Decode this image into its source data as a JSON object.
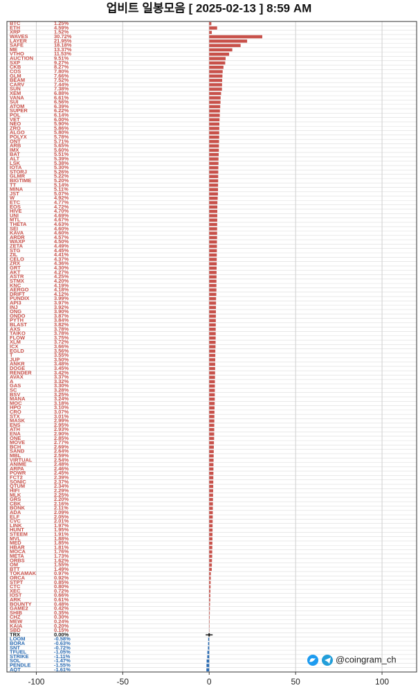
{
  "chart_data": {
    "type": "hbar",
    "title": "업비트 일봉모음 [ 2025-02-13 ]  8:59 AM",
    "footer": "@coingram_ch",
    "xlim": [
      -117,
      120
    ],
    "xticks": [
      -100,
      -50,
      0,
      50,
      100
    ],
    "grid": true,
    "colors": {
      "positive": "#c8514a",
      "zero": "#111111",
      "negative": "#2b6cb3"
    },
    "categories": [
      "BTC",
      "ETH",
      "XRP",
      "WAVES",
      "LAYER",
      "SAFE",
      "ME",
      "VTHO",
      "AUCTION",
      "SXP",
      "CKB",
      "COS",
      "GLM",
      "BEAM",
      "CARV",
      "SUN",
      "XEM",
      "VANA",
      "SUI",
      "ATOM",
      "SUPER",
      "POL",
      "VET",
      "NEO",
      "ZRO",
      "ALGO",
      "POLYX",
      "ONT",
      "ARB",
      "IMX",
      "BAT",
      "ALT",
      "LSK",
      "IOTA",
      "STORJ",
      "GLMR",
      "BIGTIME",
      "TT",
      "MINA",
      "JST",
      "W",
      "ETC",
      "EOS",
      "HIVE",
      "UNI",
      "MTL",
      "THETA",
      "SEI",
      "KAVA",
      "ARDR",
      "WAXP",
      "ZETA",
      "STG",
      "ZIL",
      "CELO",
      "ZRX",
      "GRT",
      "AKT",
      "ASTR",
      "STMX",
      "KNC",
      "AERGO",
      "DRIFT",
      "PUNDIX",
      "API3",
      "INJ",
      "ONG",
      "ONDO",
      "PYTH",
      "BLAST",
      "AXS",
      "TAIKO",
      "FLOW",
      "XLM",
      "ICX",
      "EGLD",
      "T",
      "JUP",
      "ANKR",
      "DOGE",
      "RENDER",
      "AVAX",
      "A",
      "GAS",
      "SC",
      "BSV",
      "MANA",
      "MOC",
      "HPO",
      "CRO",
      "STX",
      "MASK",
      "ENS",
      "ATH",
      "ENA",
      "ONE",
      "MOVE",
      "BCH",
      "SAND",
      "MBL",
      "VIRTUAL",
      "ANIME",
      "ARPA",
      "POWR",
      "FCT2",
      "SONIC",
      "QTUM",
      "HIFI",
      "MLK",
      "GRS",
      "CBK",
      "BONK",
      "ADA",
      "ELF",
      "CVC",
      "LINK",
      "HUNT",
      "STEEM",
      "MVL",
      "MED",
      "HBAR",
      "MOCA",
      "META",
      "ORBS",
      "OM",
      "BTT",
      "TOKAMAK",
      "ORCA",
      "STPT",
      "CTC",
      "XEC",
      "IOST",
      "ARK",
      "BOUNTY",
      "GAME2",
      "SHIB",
      "CHZ",
      "MEW",
      "KAIA",
      "SBD",
      "TRX",
      "LOOM",
      "BORA",
      "SNT",
      "TFUEL",
      "STRIKE",
      "SOL",
      "PENDLE",
      "AQT"
    ],
    "values": [
      1.25,
      4.59,
      1.52,
      30.72,
      21.95,
      18.18,
      13.37,
      11.53,
      9.51,
      9.27,
      8.27,
      7.8,
      7.66,
      7.52,
      7.44,
      7.38,
      6.88,
      6.61,
      6.56,
      6.39,
      6.22,
      6.14,
      6,
      5.9,
      5.86,
      5.8,
      5.78,
      5.71,
      5.65,
      5.6,
      5.51,
      5.39,
      5.38,
      5.3,
      5.26,
      5.22,
      5.2,
      5.14,
      5.11,
      5.07,
      4.92,
      4.77,
      4.72,
      4.7,
      4.69,
      4.67,
      4.63,
      4.6,
      4.6,
      4.57,
      4.5,
      4.49,
      4.45,
      4.41,
      4.37,
      4.36,
      4.3,
      4.27,
      4.25,
      4.2,
      4.19,
      4.18,
      4.12,
      3.99,
      3.97,
      3.92,
      3.9,
      3.87,
      3.84,
      3.82,
      3.78,
      3.78,
      3.75,
      3.72,
      3.66,
      3.56,
      3.55,
      3.5,
      3.48,
      3.45,
      3.42,
      3.37,
      3.32,
      3.3,
      3.28,
      3.25,
      3.24,
      3.18,
      3.1,
      3.07,
      3.01,
      2.99,
      2.95,
      2.93,
      2.9,
      2.85,
      2.77,
      2.69,
      2.64,
      2.59,
      2.54,
      2.48,
      2.46,
      2.45,
      2.39,
      2.37,
      2.34,
      2.29,
      2.25,
      2.2,
      2.16,
      2.11,
      2.09,
      2.05,
      2.01,
      1.97,
      1.95,
      1.91,
      1.88,
      1.85,
      1.81,
      1.76,
      1.73,
      1.62,
      1.55,
      1.49,
      0.97,
      0.92,
      0.85,
      0.8,
      0.72,
      0.66,
      0.61,
      0.48,
      0.42,
      0.35,
      0.3,
      0.24,
      0.2,
      0.15,
      0,
      -0.58,
      -0.63,
      -0.72,
      -1.05,
      -1.11,
      -1.47,
      -1.55,
      -1.61
    ],
    "value_labels": [
      "1.25%",
      "4.59%",
      "1.52%",
      "30.72%",
      "21.95%",
      "18.18%",
      "13.37%",
      "11.53%",
      "9.51%",
      "9.27%",
      "8.27%",
      "7.80%",
      "7.66%",
      "7.52%",
      "7.44%",
      "7.38%",
      "6.88%",
      "6.61%",
      "6.56%",
      "6.39%",
      "6.22%",
      "6.14%",
      "6.00%",
      "5.90%",
      "5.86%",
      "5.80%",
      "5.78%",
      "5.71%",
      "5.65%",
      "5.60%",
      "5.51%",
      "5.39%",
      "5.38%",
      "5.30%",
      "5.26%",
      "5.22%",
      "5.20%",
      "5.14%",
      "5.11%",
      "5.07%",
      "4.92%",
      "4.77%",
      "4.72%",
      "4.70%",
      "4.69%",
      "4.67%",
      "4.63%",
      "4.60%",
      "4.60%",
      "4.57%",
      "4.50%",
      "4.49%",
      "4.45%",
      "4.41%",
      "4.37%",
      "4.36%",
      "4.30%",
      "4.27%",
      "4.25%",
      "4.20%",
      "4.19%",
      "4.18%",
      "4.12%",
      "3.99%",
      "3.97%",
      "3.92%",
      "3.90%",
      "3.87%",
      "3.84%",
      "3.82%",
      "3.78%",
      "3.78%",
      "3.75%",
      "3.72%",
      "3.66%",
      "3.56%",
      "3.55%",
      "3.50%",
      "3.48%",
      "3.45%",
      "3.42%",
      "3.37%",
      "3.32%",
      "3.30%",
      "3.28%",
      "3.25%",
      "3.24%",
      "3.18%",
      "3.10%",
      "3.07%",
      "3.01%",
      "2.99%",
      "2.95%",
      "2.93%",
      "2.90%",
      "2.85%",
      "2.77%",
      "2.69%",
      "2.64%",
      "2.59%",
      "2.54%",
      "2.48%",
      "2.46%",
      "2.45%",
      "2.39%",
      "2.37%",
      "2.34%",
      "2.29%",
      "2.25%",
      "2.20%",
      "2.16%",
      "2.11%",
      "2.09%",
      "2.05%",
      "2.01%",
      "1.97%",
      "1.95%",
      "1.91%",
      "1.88%",
      "1.85%",
      "1.81%",
      "1.76%",
      "1.73%",
      "1.62%",
      "1.55%",
      "1.49%",
      "0.97%",
      "0.92%",
      "0.85%",
      "0.80%",
      "0.72%",
      "0.66%",
      "0.61%",
      "0.48%",
      "0.42%",
      "0.35%",
      "0.30%",
      "0.24%",
      "0.20%",
      "0.15%",
      "0.00%",
      "-0.58%",
      "-0.63%",
      "-0.72%",
      "-1.05%",
      "-1.11%",
      "-1.47%",
      "-1.55%",
      "-1.61%"
    ]
  }
}
